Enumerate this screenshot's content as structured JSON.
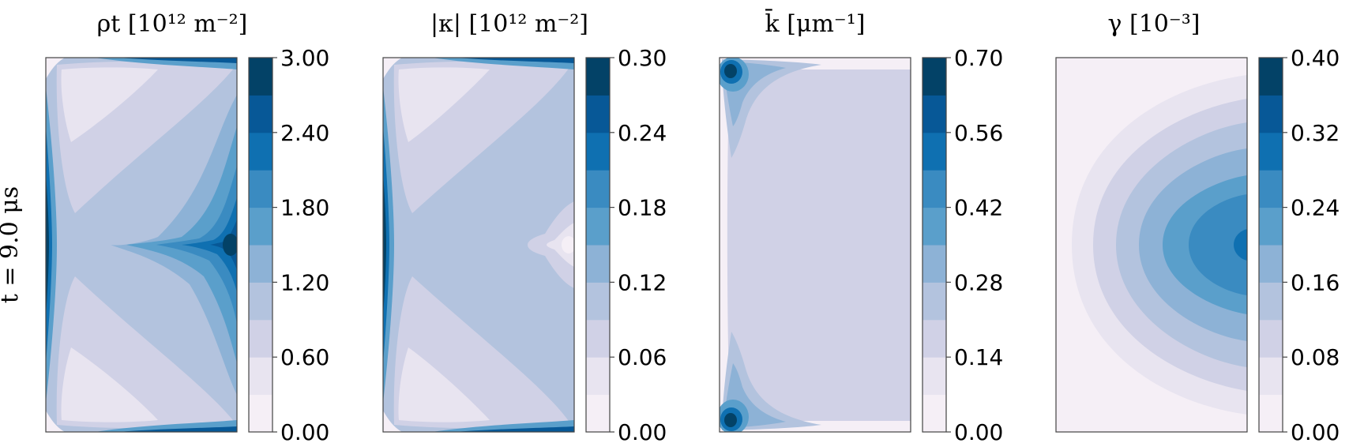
{
  "row_label": "t = 9.0 μs",
  "chart_data": [
    {
      "type": "heatmap",
      "title": "ρt  [10¹² m⁻²]",
      "colorbar": {
        "ticks": [
          "0.00",
          "0.60",
          "1.20",
          "1.80",
          "2.40",
          "3.00"
        ],
        "min": 0.0,
        "max": 3.0,
        "levels": 10
      }
    },
    {
      "type": "heatmap",
      "title": "|κ|  [10¹² m⁻²]",
      "colorbar": {
        "ticks": [
          "0.00",
          "0.06",
          "0.12",
          "0.18",
          "0.24",
          "0.30"
        ],
        "min": 0.0,
        "max": 0.3,
        "levels": 10
      }
    },
    {
      "type": "heatmap",
      "title": "k̄ [μm⁻¹]",
      "colorbar": {
        "ticks": [
          "0.00",
          "0.14",
          "0.28",
          "0.42",
          "0.56",
          "0.70"
        ],
        "min": 0.0,
        "max": 0.7,
        "levels": 10
      }
    },
    {
      "type": "heatmap",
      "title": "γ  [10⁻³]",
      "colorbar": {
        "ticks": [
          "0.00",
          "0.08",
          "0.16",
          "0.24",
          "0.32",
          "0.40"
        ],
        "min": 0.0,
        "max": 0.4,
        "levels": 10
      }
    }
  ],
  "colormap": [
    "#f5eff6",
    "#e8e4f0",
    "#d0d1e6",
    "#b3c3de",
    "#8db2d6",
    "#5a9fcb",
    "#3a8bc1",
    "#0f70b1",
    "#075897",
    "#034267"
  ]
}
